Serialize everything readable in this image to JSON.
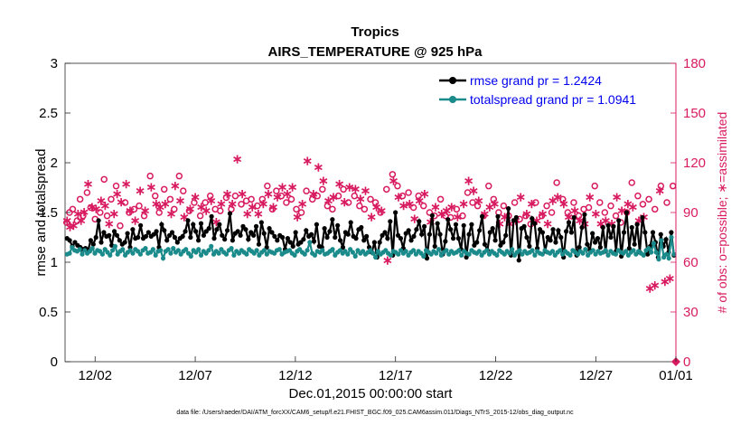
{
  "colors": {
    "rmse": "#000000",
    "spread": "#1a8a8a",
    "obs": "#d81b60",
    "legend_text": "#0000ee",
    "axis": "#262626"
  },
  "chart_data": {
    "type": "line",
    "title": "Tropics",
    "subtitle": "AIRS_TEMPERATURE @ 925 hPa",
    "xlabel": "Dec.01,2015 00:00:00 start",
    "ylabel": "rmse and totalspread",
    "ylabel_right": "# of obs: o=possible; ∗=assimilated",
    "footer": "data file: /Users/raeder/DAI/ATM_forcXX/CAM6_setup/f.e21.FHIST_BGC.f09_025.CAM6assim.011/Diags_NTrS_2015-12/obs_diag_output.nc",
    "xlim": [
      0.5,
      31.0
    ],
    "ylim": [
      0,
      3
    ],
    "ylim_right": [
      0,
      180
    ],
    "x_ticks": [
      2,
      7,
      12,
      17,
      22,
      27,
      32
    ],
    "x_tick_labels": [
      "12/02",
      "12/07",
      "12/12",
      "12/17",
      "12/22",
      "12/27",
      "01/01"
    ],
    "y_ticks": [
      0,
      0.5,
      1,
      1.5,
      2,
      2.5,
      3
    ],
    "y_tick_labels": [
      "0",
      "0.5",
      "1",
      "1.5",
      "2",
      "2.5",
      "3"
    ],
    "y_ticks_right": [
      0,
      30,
      60,
      90,
      120,
      150,
      180
    ],
    "y_tick_labels_right": [
      "0",
      "30",
      "60",
      "90",
      "120",
      "150",
      "180"
    ],
    "legend": [
      {
        "name": "rmse",
        "label": "rmse grand pr = 1.2424"
      },
      {
        "name": "totalspread",
        "label": "totalspread grand pr = 1.0941"
      }
    ],
    "legend_placement": "top-right",
    "series": [
      {
        "name": "rmse",
        "values": [
          1.24,
          1.22,
          1.16,
          1.2,
          1.17,
          1.15,
          1.13,
          1.14,
          1.12,
          1.22,
          1.18,
          1.25,
          1.42,
          1.2,
          1.3,
          1.26,
          1.27,
          1.17,
          1.31,
          1.27,
          1.22,
          1.18,
          1.2,
          1.29,
          1.15,
          1.33,
          1.24,
          1.25,
          1.37,
          1.24,
          1.26,
          1.3,
          1.26,
          1.28,
          1.31,
          1.15,
          1.38,
          1.32,
          1.22,
          1.27,
          1.3,
          1.25,
          1.2,
          1.24,
          1.26,
          1.31,
          1.42,
          1.25,
          1.38,
          1.31,
          1.22,
          1.39,
          1.27,
          1.31,
          1.34,
          1.46,
          1.24,
          1.33,
          1.38,
          1.27,
          1.23,
          1.32,
          1.49,
          1.22,
          1.29,
          1.31,
          1.27,
          1.36,
          1.33,
          1.23,
          1.3,
          1.27,
          1.36,
          1.18,
          1.4,
          1.29,
          1.15,
          1.34,
          1.3,
          1.26,
          1.22,
          1.27,
          1.25,
          1.13,
          1.24,
          1.2,
          1.16,
          1.3,
          1.18,
          1.2,
          1.23,
          1.32,
          1.26,
          1.28,
          1.21,
          1.38,
          1.16,
          1.15,
          1.34,
          1.25,
          1.31,
          1.43,
          1.25,
          1.37,
          1.22,
          1.15,
          1.3,
          1.28,
          1.4,
          1.26,
          1.24,
          1.33,
          1.35,
          1.22,
          1.26,
          1.15,
          1.1,
          1.2,
          1.05,
          1.2,
          1.27,
          1.3,
          1.24,
          1.41,
          1.07,
          1.5,
          1.27,
          1.24,
          1.14,
          1.29,
          1.32,
          1.22,
          1.26,
          1.33,
          1.41,
          1.28,
          1.36,
          1.04,
          1.28,
          1.47,
          1.16,
          1.39,
          1.28,
          1.08,
          1.21,
          1.43,
          1.33,
          1.24,
          1.38,
          1.24,
          1.13,
          1.37,
          1.05,
          1.28,
          1.38,
          1.17,
          1.2,
          1.32,
          1.46,
          1.18,
          1.12,
          1.3,
          1.34,
          1.22,
          1.46,
          1.17,
          1.2,
          1.27,
          1.54,
          1.07,
          1.42,
          1.45,
          1.02,
          1.34,
          1.36,
          1.25,
          1.16,
          1.44,
          1.39,
          1.14,
          1.33,
          1.3,
          1.11,
          1.25,
          1.22,
          1.33,
          1.2,
          1.32,
          1.25,
          1.05,
          1.31,
          1.4,
          1.3,
          1.45,
          1.07,
          1.15,
          1.35,
          1.48,
          1.18,
          1.12,
          1.29,
          1.2,
          1.24,
          1.15,
          1.35,
          1.11,
          1.37,
          1.25,
          1.36,
          1.11,
          1.42,
          1.06,
          1.3,
          1.5,
          1.14,
          1.35,
          1.18,
          1.38,
          1.1,
          1.45,
          1.3,
          1.08,
          1.16,
          1.3,
          1.2,
          1.05,
          1.28,
          1.16,
          1.23,
          1.1,
          1.3,
          1.07
        ]
      },
      {
        "name": "totalspread",
        "values": [
          1.08,
          1.09,
          1.15,
          1.12,
          1.11,
          1.13,
          1.08,
          1.12,
          1.09,
          1.11,
          1.14,
          1.09,
          1.12,
          1.11,
          1.08,
          1.13,
          1.1,
          1.07,
          1.12,
          1.16,
          1.08,
          1.11,
          1.13,
          1.07,
          1.1,
          1.12,
          1.09,
          1.13,
          1.11,
          1.08,
          1.12,
          1.14,
          1.09,
          1.1,
          1.13,
          1.07,
          1.11,
          1.12,
          1.04,
          1.11,
          1.13,
          1.09,
          1.14,
          1.1,
          1.12,
          1.08,
          1.11,
          1.13,
          1.09,
          1.06,
          1.12,
          1.1,
          1.13,
          1.07,
          1.11,
          1.09,
          1.12,
          1.16,
          1.08,
          1.11,
          1.09,
          1.13,
          1.1,
          1.08,
          1.12,
          1.14,
          1.07,
          1.11,
          1.09,
          1.12,
          1.1,
          1.08,
          1.13,
          1.11,
          1.09,
          1.12,
          1.07,
          1.1,
          1.12,
          1.08,
          1.11,
          1.1,
          1.09,
          1.12,
          1.13,
          1.08,
          1.1,
          1.11,
          1.12,
          1.09,
          1.07,
          1.11,
          1.13,
          1.1,
          1.08,
          1.12,
          1.2,
          1.09,
          1.07,
          1.11,
          1.1,
          1.12,
          1.08,
          1.09,
          1.11,
          1.13,
          1.07,
          1.1,
          1.12,
          1.09,
          1.11,
          1.08,
          1.13,
          1.1,
          1.06,
          1.12,
          1.09,
          1.11,
          1.08,
          1.1,
          1.12,
          1.09,
          1.05,
          1.11,
          1.08,
          1.1,
          1.12,
          1.09,
          1.07,
          1.11,
          1.1,
          1.08,
          1.12,
          1.09,
          1.11,
          1.07,
          1.1,
          1.12,
          1.08,
          1.11,
          1.09,
          1.06,
          1.12,
          1.1,
          1.08,
          1.11,
          1.09,
          1.13,
          1.07,
          1.1,
          1.12,
          1.08,
          1.11,
          1.09,
          1.1,
          1.12,
          1.07,
          1.11,
          1.09,
          1.08,
          1.12,
          1.1,
          1.09,
          1.11,
          1.07,
          1.1,
          1.12,
          1.08,
          1.11,
          1.09,
          1.07,
          1.12,
          1.1,
          1.08,
          1.11,
          1.09,
          1.13,
          1.07,
          1.1,
          1.12,
          1.08,
          1.11,
          1.09,
          1.1,
          1.12,
          1.07,
          1.11,
          1.09,
          1.08,
          1.12,
          1.1,
          1.09,
          1.11,
          1.07,
          1.1,
          1.12,
          1.08,
          1.11,
          1.09,
          1.07,
          1.12,
          1.1,
          1.08,
          1.11,
          1.09,
          1.13,
          1.07,
          1.1,
          1.12,
          1.08,
          1.11,
          1.09,
          1.1,
          1.12,
          1.07,
          1.11,
          1.09,
          1.08,
          1.12,
          1.1,
          1.09,
          1.11,
          1.07,
          1.1,
          1.12,
          1.08,
          1.11,
          1.09,
          1.07,
          1.12,
          1.14,
          1.1,
          1.19,
          1.1,
          1.03,
          1.22,
          1.05,
          1.08,
          1.04,
          1.25,
          1.08
        ]
      }
    ],
    "obs_possible": [
      [
        0.58,
        84
      ],
      [
        0.72,
        90
      ],
      [
        0.88,
        92
      ],
      [
        1.1,
        85
      ],
      [
        1.25,
        98
      ],
      [
        1.4,
        88
      ],
      [
        1.6,
        102
      ],
      [
        1.78,
        93
      ],
      [
        2.0,
        86
      ],
      [
        2.25,
        90
      ],
      [
        2.45,
        110
      ],
      [
        2.6,
        88
      ],
      [
        2.8,
        98
      ],
      [
        3.05,
        106
      ],
      [
        3.25,
        82
      ],
      [
        3.5,
        96
      ],
      [
        3.7,
        90
      ],
      [
        3.95,
        92
      ],
      [
        4.2,
        94
      ],
      [
        4.45,
        88
      ],
      [
        4.75,
        112
      ],
      [
        5.0,
        100
      ],
      [
        5.2,
        90
      ],
      [
        5.45,
        104
      ],
      [
        5.75,
        98
      ],
      [
        5.95,
        92
      ],
      [
        6.2,
        112
      ],
      [
        6.4,
        103
      ],
      [
        6.7,
        91
      ],
      [
        6.95,
        96
      ],
      [
        7.25,
        88
      ],
      [
        7.5,
        96
      ],
      [
        7.75,
        100
      ],
      [
        8.0,
        92
      ],
      [
        8.25,
        91
      ],
      [
        8.55,
        99
      ],
      [
        8.8,
        92
      ],
      [
        9.0,
        100
      ],
      [
        9.3,
        95
      ],
      [
        9.55,
        97
      ],
      [
        9.8,
        98
      ],
      [
        10.1,
        94
      ],
      [
        10.35,
        98
      ],
      [
        10.6,
        106
      ],
      [
        10.85,
        92
      ],
      [
        11.05,
        103
      ],
      [
        11.3,
        100
      ],
      [
        11.55,
        96
      ],
      [
        11.8,
        98
      ],
      [
        12.05,
        92
      ],
      [
        12.3,
        90
      ],
      [
        12.55,
        103
      ],
      [
        12.85,
        98
      ],
      [
        13.1,
        100
      ],
      [
        13.35,
        104
      ],
      [
        13.6,
        94
      ],
      [
        13.85,
        92
      ],
      [
        14.15,
        100
      ],
      [
        14.4,
        104
      ],
      [
        14.65,
        96
      ],
      [
        14.95,
        100
      ],
      [
        15.2,
        94
      ],
      [
        15.45,
        92
      ],
      [
        15.75,
        98
      ],
      [
        16.0,
        96
      ],
      [
        16.25,
        90
      ],
      [
        16.55,
        104
      ],
      [
        16.85,
        113
      ],
      [
        17.1,
        106
      ],
      [
        17.35,
        100
      ],
      [
        17.65,
        102
      ],
      [
        17.9,
        93
      ],
      [
        18.15,
        100
      ],
      [
        18.4,
        94
      ],
      [
        18.7,
        90
      ],
      [
        18.95,
        88
      ],
      [
        19.25,
        98
      ],
      [
        19.5,
        88
      ],
      [
        19.75,
        87
      ],
      [
        20.05,
        92
      ],
      [
        20.35,
        88
      ],
      [
        20.6,
        102
      ],
      [
        20.85,
        96
      ],
      [
        21.1,
        94
      ],
      [
        21.4,
        88
      ],
      [
        21.65,
        106
      ],
      [
        21.9,
        98
      ],
      [
        22.15,
        90
      ],
      [
        22.4,
        94
      ],
      [
        22.65,
        88
      ],
      [
        22.95,
        96
      ],
      [
        23.2,
        86
      ],
      [
        23.5,
        88
      ],
      [
        23.75,
        83
      ],
      [
        24.0,
        96
      ],
      [
        24.3,
        88
      ],
      [
        24.55,
        94
      ],
      [
        24.8,
        90
      ],
      [
        25.05,
        108
      ],
      [
        25.35,
        98
      ],
      [
        25.6,
        90
      ],
      [
        25.9,
        96
      ],
      [
        26.15,
        88
      ],
      [
        26.4,
        92
      ],
      [
        26.65,
        93
      ],
      [
        26.95,
        106
      ],
      [
        27.2,
        96
      ],
      [
        27.45,
        90
      ],
      [
        27.75,
        94
      ],
      [
        28.0,
        88
      ],
      [
        28.25,
        84
      ],
      [
        28.55,
        90
      ],
      [
        28.8,
        108
      ],
      [
        29.1,
        100
      ],
      [
        29.35,
        95
      ],
      [
        29.65,
        98
      ],
      [
        29.95,
        92
      ],
      [
        30.25,
        106
      ],
      [
        30.55,
        96
      ],
      [
        30.85,
        106
      ]
    ],
    "obs_assimilated": [
      [
        0.6,
        86
      ],
      [
        0.75,
        82
      ],
      [
        0.92,
        83
      ],
      [
        1.15,
        90
      ],
      [
        1.3,
        86
      ],
      [
        1.45,
        91
      ],
      [
        1.65,
        108
      ],
      [
        1.85,
        94
      ],
      [
        2.05,
        93
      ],
      [
        2.3,
        98
      ],
      [
        2.5,
        95
      ],
      [
        2.7,
        84
      ],
      [
        2.95,
        90
      ],
      [
        3.1,
        102
      ],
      [
        3.3,
        97
      ],
      [
        3.55,
        108
      ],
      [
        3.75,
        92
      ],
      [
        4.0,
        86
      ],
      [
        4.25,
        104
      ],
      [
        4.5,
        92
      ],
      [
        4.8,
        106
      ],
      [
        5.05,
        96
      ],
      [
        5.25,
        94
      ],
      [
        5.5,
        96
      ],
      [
        5.8,
        90
      ],
      [
        6.0,
        107
      ],
      [
        6.25,
        98
      ],
      [
        6.45,
        88
      ],
      [
        6.75,
        93
      ],
      [
        7.0,
        100
      ],
      [
        7.3,
        94
      ],
      [
        7.55,
        92
      ],
      [
        7.8,
        98
      ],
      [
        8.05,
        85
      ],
      [
        8.3,
        96
      ],
      [
        8.6,
        102
      ],
      [
        8.85,
        96
      ],
      [
        9.1,
        123
      ],
      [
        9.35,
        102
      ],
      [
        9.6,
        90
      ],
      [
        9.85,
        94
      ],
      [
        10.15,
        90
      ],
      [
        10.4,
        96
      ],
      [
        10.65,
        102
      ],
      [
        10.9,
        94
      ],
      [
        11.1,
        100
      ],
      [
        11.35,
        106
      ],
      [
        11.6,
        102
      ],
      [
        11.85,
        106
      ],
      [
        12.1,
        88
      ],
      [
        12.35,
        96
      ],
      [
        12.6,
        122
      ],
      [
        12.9,
        102
      ],
      [
        13.15,
        118
      ],
      [
        13.4,
        110
      ],
      [
        13.65,
        98
      ],
      [
        13.9,
        100
      ],
      [
        14.2,
        108
      ],
      [
        14.45,
        97
      ],
      [
        14.7,
        106
      ],
      [
        15.0,
        105
      ],
      [
        15.25,
        99
      ],
      [
        15.5,
        104
      ],
      [
        15.8,
        88
      ],
      [
        16.05,
        94
      ],
      [
        16.3,
        92
      ],
      [
        16.6,
        62
      ],
      [
        16.9,
        110
      ],
      [
        17.15,
        100
      ],
      [
        17.4,
        95
      ],
      [
        17.7,
        96
      ],
      [
        17.95,
        87
      ],
      [
        18.2,
        98
      ],
      [
        18.45,
        102
      ],
      [
        18.75,
        85
      ],
      [
        19.0,
        94
      ],
      [
        19.3,
        90
      ],
      [
        19.55,
        92
      ],
      [
        19.8,
        94
      ],
      [
        20.1,
        88
      ],
      [
        20.4,
        96
      ],
      [
        20.65,
        110
      ],
      [
        20.9,
        104
      ],
      [
        21.15,
        98
      ],
      [
        21.45,
        90
      ],
      [
        21.7,
        94
      ],
      [
        21.95,
        96
      ],
      [
        22.2,
        84
      ],
      [
        22.45,
        88
      ],
      [
        22.7,
        84
      ],
      [
        23.0,
        86
      ],
      [
        23.25,
        100
      ],
      [
        23.55,
        90
      ],
      [
        23.8,
        96
      ],
      [
        24.05,
        86
      ],
      [
        24.35,
        90
      ],
      [
        24.6,
        84
      ],
      [
        24.85,
        98
      ],
      [
        25.1,
        100
      ],
      [
        25.4,
        96
      ],
      [
        25.65,
        88
      ],
      [
        25.95,
        92
      ],
      [
        26.2,
        86
      ],
      [
        26.45,
        84
      ],
      [
        26.7,
        100
      ],
      [
        27.0,
        90
      ],
      [
        27.25,
        84
      ],
      [
        27.5,
        86
      ],
      [
        27.8,
        84
      ],
      [
        28.05,
        100
      ],
      [
        28.3,
        92
      ],
      [
        28.6,
        96
      ],
      [
        28.85,
        94
      ],
      [
        29.15,
        86
      ],
      [
        29.4,
        88
      ],
      [
        29.7,
        45
      ],
      [
        29.95,
        47
      ],
      [
        30.2,
        104
      ],
      [
        30.45,
        49
      ],
      [
        30.7,
        51
      ]
    ]
  }
}
